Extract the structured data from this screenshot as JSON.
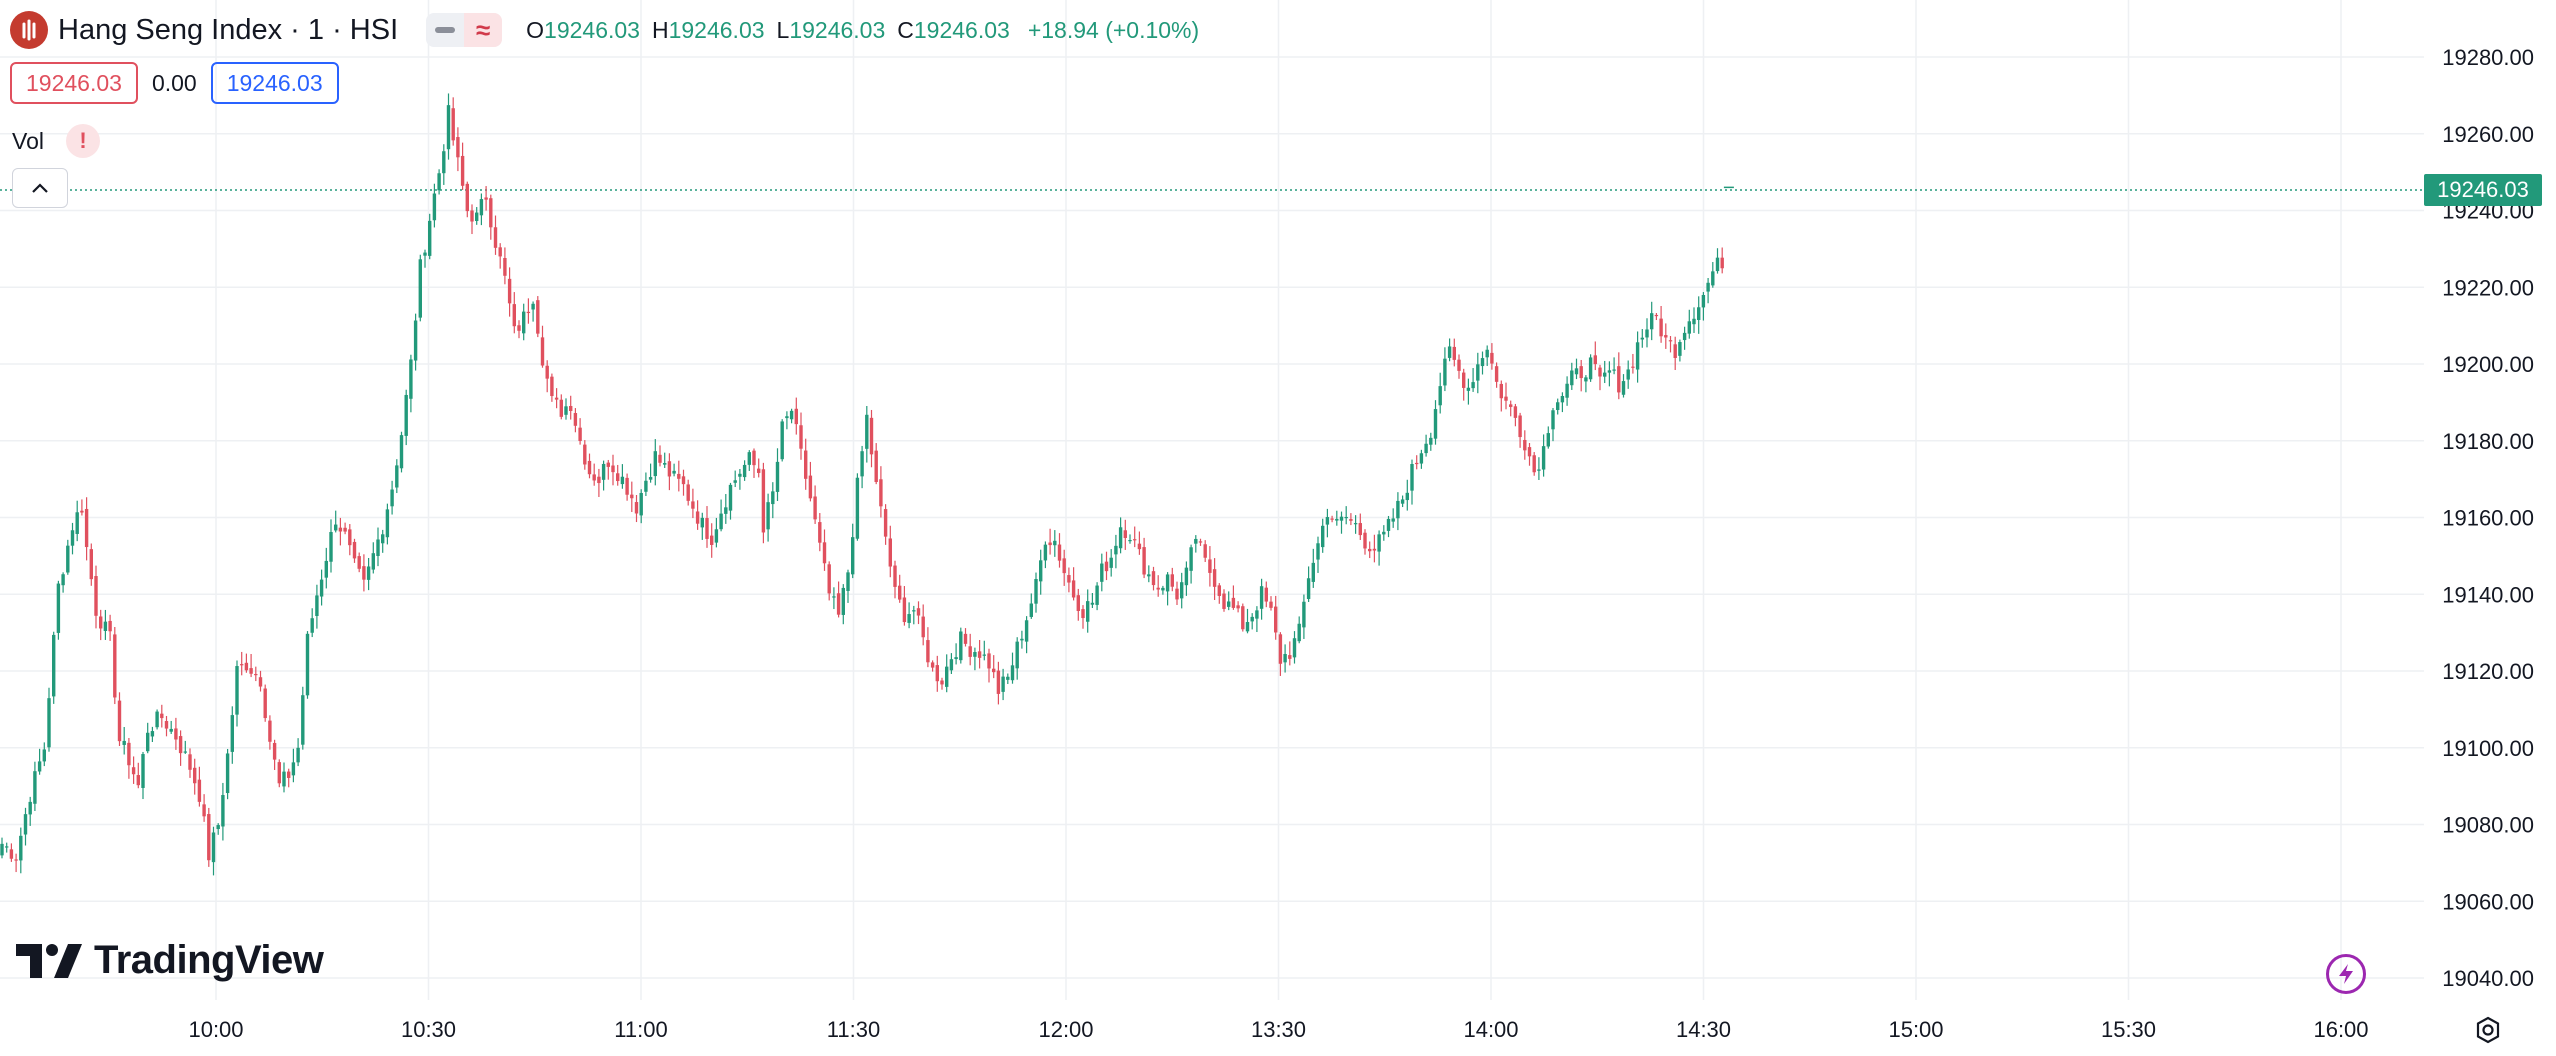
{
  "header": {
    "symbol": "Hang Seng Index · 1 · HSI",
    "ohlc": {
      "o_label": "O",
      "o_value": "19246.03",
      "h_label": "H",
      "h_value": "19246.03",
      "l_label": "L",
      "l_value": "19246.03",
      "c_label": "C",
      "c_value": "19246.03",
      "change": "+18.94 (+0.10%)"
    },
    "bid": "19246.03",
    "spread": "0.00",
    "ask": "19246.03",
    "volume_label": "Vol",
    "warning_glyph": "!"
  },
  "last_price_tag": "19246.03",
  "brand": "TradingView",
  "icons": {
    "logo": "hsi-logo-icon",
    "collapse": "chevron-up-icon",
    "bolt": "lightning-icon",
    "settings": "gear-icon"
  },
  "colors": {
    "up": "#22997a",
    "down": "#e0505e",
    "last_price_line": "#22997a"
  },
  "chart_data": {
    "type": "candlestick",
    "y_ticks": [
      "19280.00",
      "19260.00",
      "19240.00",
      "19220.00",
      "19200.00",
      "19180.00",
      "19160.00",
      "19140.00",
      "19120.00",
      "19100.00",
      "19080.00",
      "19060.00",
      "19040.00"
    ],
    "y_tick_values": [
      19280,
      19260,
      19240,
      19220,
      19200,
      19180,
      19160,
      19140,
      19120,
      19100,
      19080,
      19060,
      19040
    ],
    "ylim": [
      19034,
      19290
    ],
    "x_ticks": [
      "10:00",
      "10:30",
      "11:00",
      "11:30",
      "12:00",
      "13:30",
      "14:00",
      "14:30",
      "15:00",
      "15:30",
      "16:00"
    ],
    "last_price": 19246.03,
    "grid": true,
    "close_path": [
      [
        0,
        19075
      ],
      [
        3,
        19072
      ],
      [
        6,
        19088
      ],
      [
        9,
        19100
      ],
      [
        12,
        19142
      ],
      [
        15,
        19158
      ],
      [
        17,
        19163
      ],
      [
        18,
        19152
      ],
      [
        20,
        19136
      ],
      [
        23,
        19128
      ],
      [
        25,
        19102
      ],
      [
        27,
        19097
      ],
      [
        29,
        19090
      ],
      [
        31,
        19105
      ],
      [
        34,
        19108
      ],
      [
        37,
        19103
      ],
      [
        40,
        19095
      ],
      [
        42,
        19088
      ],
      [
        44,
        19072
      ],
      [
        46,
        19080
      ],
      [
        48,
        19098
      ],
      [
        50,
        19120
      ],
      [
        52,
        19122
      ],
      [
        55,
        19118
      ],
      [
        57,
        19102
      ],
      [
        59,
        19090
      ],
      [
        61,
        19093
      ],
      [
        63,
        19100
      ],
      [
        65,
        19128
      ],
      [
        67,
        19140
      ],
      [
        69,
        19150
      ],
      [
        71,
        19160
      ],
      [
        73,
        19155
      ],
      [
        75,
        19147
      ],
      [
        77,
        19142
      ],
      [
        79,
        19150
      ],
      [
        81,
        19158
      ],
      [
        83,
        19168
      ],
      [
        85,
        19182
      ],
      [
        87,
        19200
      ],
      [
        89,
        19225
      ],
      [
        91,
        19238
      ],
      [
        93,
        19250
      ],
      [
        95,
        19265
      ],
      [
        97,
        19252
      ],
      [
        99,
        19240
      ],
      [
        101,
        19238
      ],
      [
        103,
        19244
      ],
      [
        105,
        19232
      ],
      [
        107,
        19222
      ],
      [
        109,
        19208
      ],
      [
        111,
        19212
      ],
      [
        113,
        19218
      ],
      [
        115,
        19202
      ],
      [
        117,
        19190
      ],
      [
        119,
        19188
      ],
      [
        121,
        19190
      ],
      [
        123,
        19180
      ],
      [
        125,
        19172
      ],
      [
        127,
        19170
      ],
      [
        129,
        19175
      ],
      [
        131,
        19172
      ],
      [
        133,
        19168
      ],
      [
        135,
        19163
      ],
      [
        137,
        19170
      ],
      [
        139,
        19176
      ],
      [
        141,
        19173
      ],
      [
        143,
        19170
      ],
      [
        145,
        19168
      ],
      [
        147,
        19163
      ],
      [
        149,
        19158
      ],
      [
        151,
        19155
      ],
      [
        153,
        19162
      ],
      [
        155,
        19168
      ],
      [
        157,
        19172
      ],
      [
        159,
        19175
      ],
      [
        161,
        19172
      ],
      [
        162,
        19158
      ],
      [
        164,
        19166
      ],
      [
        166,
        19183
      ],
      [
        168,
        19188
      ],
      [
        170,
        19176
      ],
      [
        172,
        19165
      ],
      [
        174,
        19152
      ],
      [
        176,
        19140
      ],
      [
        178,
        19134
      ],
      [
        180,
        19146
      ],
      [
        182,
        19168
      ],
      [
        184,
        19186
      ],
      [
        186,
        19168
      ],
      [
        188,
        19155
      ],
      [
        190,
        19140
      ],
      [
        192,
        19135
      ],
      [
        194,
        19136
      ],
      [
        196,
        19128
      ],
      [
        198,
        19120
      ],
      [
        200,
        19118
      ],
      [
        202,
        19124
      ],
      [
        204,
        19128
      ],
      [
        206,
        19126
      ],
      [
        208,
        19125
      ],
      [
        210,
        19122
      ],
      [
        212,
        19115
      ],
      [
        214,
        19118
      ],
      [
        216,
        19126
      ],
      [
        218,
        19134
      ],
      [
        220,
        19142
      ],
      [
        222,
        19155
      ],
      [
        224,
        19154
      ],
      [
        226,
        19146
      ],
      [
        228,
        19140
      ],
      [
        230,
        19136
      ],
      [
        232,
        19138
      ],
      [
        234,
        19146
      ],
      [
        236,
        19150
      ],
      [
        238,
        19158
      ],
      [
        240,
        19156
      ],
      [
        242,
        19150
      ],
      [
        244,
        19145
      ],
      [
        246,
        19142
      ],
      [
        248,
        19144
      ],
      [
        250,
        19140
      ],
      [
        252,
        19145
      ],
      [
        254,
        19155
      ],
      [
        256,
        19148
      ],
      [
        258,
        19144
      ],
      [
        260,
        19138
      ],
      [
        262,
        19136
      ],
      [
        264,
        19132
      ],
      [
        266,
        19135
      ],
      [
        268,
        19140
      ],
      [
        270,
        19135
      ],
      [
        272,
        19123
      ],
      [
        274,
        19125
      ],
      [
        276,
        19130
      ],
      [
        278,
        19145
      ],
      [
        280,
        19153
      ],
      [
        282,
        19162
      ],
      [
        284,
        19158
      ],
      [
        286,
        19160
      ],
      [
        288,
        19158
      ],
      [
        290,
        19154
      ],
      [
        292,
        19152
      ],
      [
        294,
        19155
      ],
      [
        296,
        19160
      ],
      [
        298,
        19165
      ],
      [
        300,
        19172
      ],
      [
        302,
        19178
      ],
      [
        304,
        19183
      ],
      [
        306,
        19195
      ],
      [
        308,
        19203
      ],
      [
        310,
        19198
      ],
      [
        312,
        19194
      ],
      [
        314,
        19200
      ],
      [
        316,
        19205
      ],
      [
        318,
        19195
      ],
      [
        320,
        19190
      ],
      [
        322,
        19186
      ],
      [
        324,
        19180
      ],
      [
        326,
        19172
      ],
      [
        328,
        19178
      ],
      [
        330,
        19190
      ],
      [
        332,
        19192
      ],
      [
        334,
        19196
      ],
      [
        336,
        19198
      ],
      [
        338,
        19200
      ],
      [
        340,
        19195
      ],
      [
        342,
        19198
      ],
      [
        344,
        19195
      ],
      [
        346,
        19198
      ],
      [
        348,
        19205
      ],
      [
        350,
        19210
      ],
      [
        352,
        19212
      ],
      [
        354,
        19206
      ],
      [
        356,
        19204
      ],
      [
        358,
        19210
      ],
      [
        360,
        19214
      ],
      [
        362,
        19218
      ],
      [
        364,
        19224
      ],
      [
        366,
        19227
      ]
    ]
  }
}
